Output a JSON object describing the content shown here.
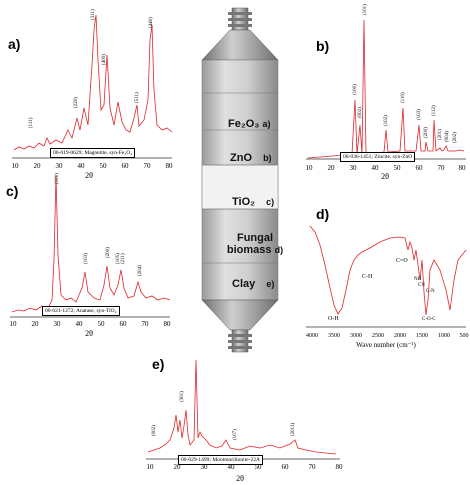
{
  "panels": {
    "a": {
      "letter": "a)",
      "ref": "00-019-0629; Magnetite, syn-Fe₃O₄",
      "xlabel": "2θ",
      "ticks": [
        "10",
        "20",
        "30",
        "40",
        "50",
        "60",
        "70",
        "80"
      ],
      "peaks": [
        "(111)",
        "(220)",
        "(311)",
        "(400)",
        "(511)",
        "(440)"
      ]
    },
    "b": {
      "letter": "b)",
      "ref": "00-036-1451; Zincite, syn-ZnO",
      "xlabel": "2θ",
      "ticks": [
        "10",
        "20",
        "30",
        "40",
        "50",
        "60",
        "70",
        "80"
      ],
      "peaks": [
        "(100)",
        "(002)",
        "(101)",
        "(102)",
        "(110)",
        "(103)",
        "(200)",
        "(112)",
        "(201)",
        "(004)",
        "(202)"
      ]
    },
    "c": {
      "letter": "c)",
      "ref": "00-021-1272; Anatase, syn-TiO₂",
      "xlabel": "2θ",
      "ticks": [
        "10",
        "20",
        "30",
        "40",
        "50",
        "60",
        "70",
        "80"
      ],
      "peaks": [
        "(101)",
        "(103)",
        "(200)",
        "(105)",
        "(211)",
        "(204)"
      ]
    },
    "d": {
      "letter": "d)",
      "xlabel": "Wave number (cm⁻¹)",
      "ticks": [
        "4000",
        "3500",
        "3000",
        "2500",
        "2000",
        "1500",
        "1000",
        "500"
      ],
      "bands": [
        "O-H",
        "C-H",
        "C=O",
        "NH",
        "CN",
        "C-N",
        "C-O-C"
      ]
    },
    "e": {
      "letter": "e)",
      "ref": "00-029-1499; Montmorillonite-22A",
      "xlabel": "2θ",
      "ticks": [
        "10",
        "20",
        "30",
        "40",
        "50",
        "60",
        "70",
        "80"
      ],
      "peaks": [
        "(002)",
        "(301)",
        "(107)",
        "(2011)"
      ]
    }
  },
  "column": {
    "layers": [
      {
        "name": "Fe₂O₃",
        "tag": "a)"
      },
      {
        "name": "ZnO",
        "tag": "b)"
      },
      {
        "name": "TiO₂",
        "tag": "c)"
      },
      {
        "name": "Fungal biomass",
        "tag": "d)"
      },
      {
        "name": "Clay",
        "tag": "e)"
      }
    ]
  },
  "colors": {
    "trace": "#e0262b",
    "axis": "#333333",
    "column_dark": "#8a8a8a",
    "column_light": "#dcdcdc"
  }
}
